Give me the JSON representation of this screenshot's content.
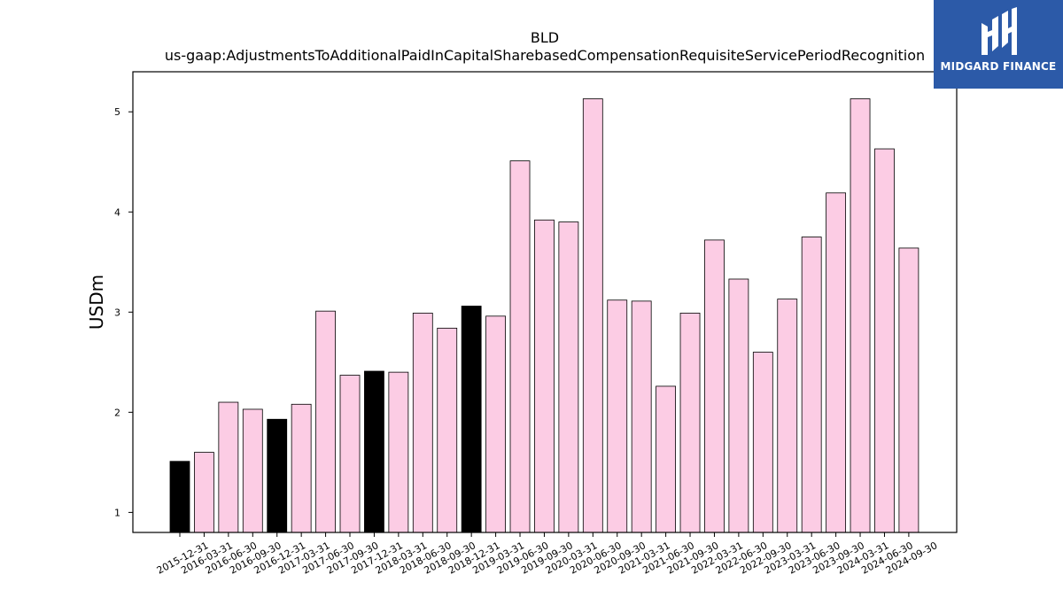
{
  "logo": {
    "text": "MIDGARD FINANCE"
  },
  "colors": {
    "default_bar": "#fccce4",
    "highlight_bar": "#000000",
    "edge": "#000000"
  },
  "chart_data": {
    "type": "bar",
    "title": "BLD",
    "subtitle": "us-gaap:AdjustmentsToAdditionalPaidInCapitalSharebasedCompensationRequisiteServicePeriodRecognition",
    "xlabel": "",
    "ylabel": "USDm",
    "ylim": [
      0.8,
      5.4
    ],
    "yticks": [
      1,
      2,
      3,
      4,
      5
    ],
    "grid": false,
    "categories": [
      "2015-12-31",
      "2016-03-31",
      "2016-06-30",
      "2016-09-30",
      "2016-12-31",
      "2017-03-31",
      "2017-06-30",
      "2017-09-30",
      "2017-12-31",
      "2018-03-31",
      "2018-06-30",
      "2018-09-30",
      "2018-12-31",
      "2019-03-31",
      "2019-06-30",
      "2019-09-30",
      "2020-03-31",
      "2020-06-30",
      "2020-09-30",
      "2021-03-31",
      "2021-06-30",
      "2021-09-30",
      "2022-03-31",
      "2022-06-30",
      "2022-09-30",
      "2023-03-31",
      "2023-06-30",
      "2023-09-30",
      "2024-03-31",
      "2024-06-30",
      "2024-09-30"
    ],
    "values": [
      1.51,
      1.6,
      2.1,
      2.03,
      1.93,
      2.08,
      3.01,
      2.37,
      2.41,
      2.4,
      2.99,
      2.84,
      3.06,
      2.96,
      4.51,
      3.92,
      3.9,
      5.13,
      3.12,
      3.11,
      2.26,
      2.99,
      3.72,
      3.33,
      2.6,
      3.13,
      3.75,
      4.19,
      5.13,
      4.63,
      3.64
    ],
    "highlight": [
      true,
      false,
      false,
      false,
      true,
      false,
      false,
      false,
      true,
      false,
      false,
      false,
      true,
      false,
      false,
      false,
      false,
      false,
      false,
      false,
      false,
      false,
      false,
      false,
      false,
      false,
      false,
      false,
      false,
      false,
      false
    ]
  }
}
